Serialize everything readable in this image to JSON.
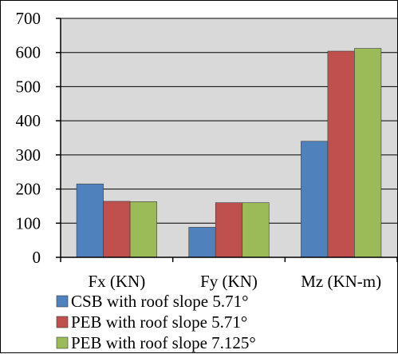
{
  "chart_data": {
    "type": "bar",
    "categories": [
      "Fx (KN)",
      "Fy (KN)",
      "Mz (KN-m)"
    ],
    "series": [
      {
        "name": "CSB with roof slope 5.71°",
        "color": "#4f81bd",
        "values": [
          215,
          88,
          340
        ]
      },
      {
        "name": "PEB with roof slope 5.71°",
        "color": "#c0504d",
        "values": [
          164,
          160,
          604
        ]
      },
      {
        "name": "PEB with roof slope 7.125°",
        "color": "#9bbb59",
        "values": [
          163,
          160,
          612
        ]
      }
    ],
    "yticks": [
      "0",
      "100",
      "200",
      "300",
      "400",
      "500",
      "600",
      "700"
    ],
    "ylim": [
      0,
      700
    ],
    "grid": true,
    "plot_background": "#d9d9d9",
    "legend": "bottom-left"
  }
}
